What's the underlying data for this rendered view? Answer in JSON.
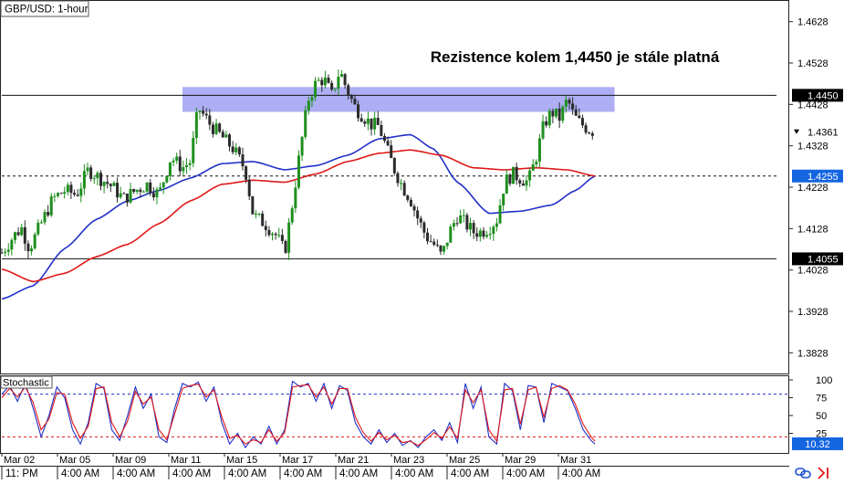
{
  "symbol_label": "GBP/USD: 1-hour",
  "annotation": "Rezistence kolem 1,4450 je stále platná",
  "indicator_label": "Stochastic",
  "colors": {
    "candle_up": "#1f8f1f",
    "candle_down": "#2b2b2b",
    "ma_fast": "#2030c8",
    "ma_slow": "#e01818",
    "zone_fill": "#8c8cf0",
    "tag_dark": "#000000",
    "tag_blue": "#1565e0",
    "stoch_k": "#2030c8",
    "stoch_d": "#e01818"
  },
  "footer_icons": [
    "link-icon",
    "arrow-right-icon"
  ],
  "chart_data": [
    {
      "type": "candlestick",
      "title": "GBP/USD: 1-hour",
      "x_range": [
        0,
        100
      ],
      "ylim": [
        1.3778,
        1.4678
      ],
      "y_ticks": [
        "1.4628",
        "1.4528",
        "1.4428",
        "1.4328",
        "1.4228",
        "1.4128",
        "1.4028",
        "1.3928",
        "1.3828"
      ],
      "x_tick_dates": [
        "Mar 02",
        "Mar 05",
        "Mar 09",
        "Mar 11",
        "Mar 15",
        "Mar 17",
        "Mar 21",
        "Mar 23",
        "Mar 25",
        "Mar 29",
        "Mar 31"
      ],
      "x_tick_times": [
        "11: PM",
        "4:00 AM",
        "4:00 AM",
        "4:00 AM",
        "4:00 AM",
        "4:00 AM",
        "4:00 AM",
        "4:00 AM",
        "4:00 AM",
        "4:00 AM",
        "4:00 AM"
      ],
      "price_tags": [
        {
          "label": "1.4450",
          "value": 1.445,
          "style": "dark"
        },
        {
          "label": "1.4361",
          "value": 1.4361,
          "style": "light"
        },
        {
          "label": "1.4255",
          "value": 1.4255,
          "style": "blue"
        },
        {
          "label": "1.4055",
          "value": 1.4055,
          "style": "dark"
        }
      ],
      "horizontal_lines": [
        {
          "value": 1.445,
          "style": "solid"
        },
        {
          "value": 1.4255,
          "style": "dashed"
        },
        {
          "value": 1.4055,
          "style": "solid"
        }
      ],
      "resistance_zone": {
        "from": 1.441,
        "to": 1.447,
        "x_start": 23,
        "x_end": 78
      },
      "price_path": [
        [
          0,
          1.407
        ],
        [
          1.5,
          1.411
        ],
        [
          2.5,
          1.413
        ],
        [
          3.5,
          1.408
        ],
        [
          5,
          1.414
        ],
        [
          6.5,
          1.42
        ],
        [
          8,
          1.422
        ],
        [
          9.5,
          1.421
        ],
        [
          11,
          1.427
        ],
        [
          12.5,
          1.425
        ],
        [
          14,
          1.423
        ],
        [
          15.5,
          1.42
        ],
        [
          17,
          1.422
        ],
        [
          18.5,
          1.4235
        ],
        [
          20,
          1.421
        ],
        [
          21.5,
          1.43
        ],
        [
          23,
          1.4275
        ],
        [
          24,
          1.429
        ],
        [
          25,
          1.442
        ],
        [
          26.5,
          1.438
        ],
        [
          28,
          1.435
        ],
        [
          29.5,
          1.432
        ],
        [
          31,
          1.427
        ],
        [
          32,
          1.416
        ],
        [
          33.5,
          1.414
        ],
        [
          35,
          1.411
        ],
        [
          36,
          1.407
        ],
        [
          37,
          1.419
        ],
        [
          38,
          1.432
        ],
        [
          39,
          1.444
        ],
        [
          40,
          1.448
        ],
        [
          41,
          1.449
        ],
        [
          42,
          1.445
        ],
        [
          43,
          1.451
        ],
        [
          44,
          1.446
        ],
        [
          45,
          1.442
        ],
        [
          46,
          1.44
        ],
        [
          47,
          1.438
        ],
        [
          48,
          1.4375
        ],
        [
          49,
          1.432
        ],
        [
          50,
          1.427
        ],
        [
          51,
          1.423
        ],
        [
          52,
          1.42
        ],
        [
          53,
          1.415
        ],
        [
          54,
          1.411
        ],
        [
          55,
          1.409
        ],
        [
          56,
          1.406
        ],
        [
          57,
          1.412
        ],
        [
          58,
          1.416
        ],
        [
          59,
          1.414
        ],
        [
          60,
          1.412
        ],
        [
          61,
          1.412
        ],
        [
          62,
          1.413
        ],
        [
          63,
          1.415
        ],
        [
          64,
          1.424
        ],
        [
          65,
          1.426
        ],
        [
          66,
          1.425
        ],
        [
          67,
          1.424
        ],
        [
          68,
          1.43
        ],
        [
          69,
          1.438
        ],
        [
          70,
          1.441
        ],
        [
          71,
          1.4395
        ],
        [
          72,
          1.444
        ],
        [
          72.8,
          1.44
        ],
        [
          73.5,
          1.4385
        ],
        [
          74.5,
          1.437
        ],
        [
          75.5,
          1.4361
        ]
      ],
      "series": [
        {
          "name": "",
          "color": "ma_fast",
          "points": [
            [
              0,
              1.3958
            ],
            [
              4,
              1.399
            ],
            [
              8,
              1.408
            ],
            [
              12,
              1.415
            ],
            [
              16,
              1.4195
            ],
            [
              20,
              1.422
            ],
            [
              24,
              1.425
            ],
            [
              28,
              1.4285
            ],
            [
              32,
              1.429
            ],
            [
              36,
              1.427
            ],
            [
              40,
              1.428
            ],
            [
              44,
              1.4305
            ],
            [
              48,
              1.4345
            ],
            [
              52,
              1.4355
            ],
            [
              55,
              1.432
            ],
            [
              58,
              1.424
            ],
            [
              62,
              1.4165
            ],
            [
              66,
              1.417
            ],
            [
              70,
              1.4185
            ],
            [
              73,
              1.422
            ],
            [
              75.5,
              1.4255
            ]
          ]
        },
        {
          "name": "",
          "color": "ma_slow",
          "points": [
            [
              0,
              1.403
            ],
            [
              4,
              1.4
            ],
            [
              8,
              1.402
            ],
            [
              12,
              1.406
            ],
            [
              16,
              1.409
            ],
            [
              20,
              1.414
            ],
            [
              24,
              1.4195
            ],
            [
              28,
              1.4235
            ],
            [
              32,
              1.4245
            ],
            [
              36,
              1.424
            ],
            [
              40,
              1.426
            ],
            [
              44,
              1.429
            ],
            [
              48,
              1.431
            ],
            [
              52,
              1.4318
            ],
            [
              56,
              1.4305
            ],
            [
              60,
              1.4275
            ],
            [
              64,
              1.427
            ],
            [
              68,
              1.4275
            ],
            [
              72,
              1.427
            ],
            [
              75.5,
              1.4255
            ]
          ]
        }
      ]
    },
    {
      "type": "line",
      "title": "Stochastic",
      "ylim": [
        0,
        100
      ],
      "y_ticks": [
        "100",
        "75",
        "50",
        "25"
      ],
      "reference_lines": [
        80,
        20
      ],
      "current_value": "10.32",
      "series": [
        {
          "name": "",
          "color": "stoch_k",
          "values": [
            [
              0,
              80
            ],
            [
              1,
              92
            ],
            [
              2,
              70
            ],
            [
              3,
              95
            ],
            [
              4,
              60
            ],
            [
              5,
              20
            ],
            [
              6,
              50
            ],
            [
              7,
              90
            ],
            [
              8,
              75
            ],
            [
              9,
              30
            ],
            [
              10,
              10
            ],
            [
              11,
              40
            ],
            [
              12,
              95
            ],
            [
              13,
              88
            ],
            [
              14,
              30
            ],
            [
              15,
              15
            ],
            [
              16,
              50
            ],
            [
              17,
              90
            ],
            [
              18,
              60
            ],
            [
              19,
              80
            ],
            [
              20,
              20
            ],
            [
              21,
              12
            ],
            [
              22,
              60
            ],
            [
              23,
              95
            ],
            [
              24,
              90
            ],
            [
              25,
              97
            ],
            [
              26,
              70
            ],
            [
              27,
              90
            ],
            [
              28,
              40
            ],
            [
              29,
              10
            ],
            [
              30,
              25
            ],
            [
              31,
              5
            ],
            [
              32,
              20
            ],
            [
              33,
              10
            ],
            [
              34,
              35
            ],
            [
              35,
              10
            ],
            [
              36,
              30
            ],
            [
              37,
              98
            ],
            [
              38,
              90
            ],
            [
              39,
              95
            ],
            [
              40,
              70
            ],
            [
              41,
              95
            ],
            [
              42,
              60
            ],
            [
              43,
              92
            ],
            [
              44,
              85
            ],
            [
              45,
              40
            ],
            [
              46,
              20
            ],
            [
              47,
              10
            ],
            [
              48,
              30
            ],
            [
              49,
              12
            ],
            [
              50,
              25
            ],
            [
              51,
              8
            ],
            [
              52,
              15
            ],
            [
              53,
              5
            ],
            [
              54,
              20
            ],
            [
              55,
              30
            ],
            [
              56,
              15
            ],
            [
              57,
              40
            ],
            [
              58,
              12
            ],
            [
              59,
              95
            ],
            [
              60,
              60
            ],
            [
              61,
              90
            ],
            [
              62,
              20
            ],
            [
              63,
              10
            ],
            [
              64,
              95
            ],
            [
              65,
              85
            ],
            [
              66,
              30
            ],
            [
              67,
              92
            ],
            [
              68,
              90
            ],
            [
              69,
              40
            ],
            [
              70,
              95
            ],
            [
              71,
              90
            ],
            [
              72,
              85
            ],
            [
              73,
              60
            ],
            [
              74,
              30
            ],
            [
              75,
              15
            ],
            [
              75.5,
              10
            ]
          ]
        },
        {
          "name": "",
          "color": "stoch_d",
          "values": [
            [
              0,
              75
            ],
            [
              1,
              88
            ],
            [
              2,
              76
            ],
            [
              3,
              90
            ],
            [
              4,
              68
            ],
            [
              5,
              30
            ],
            [
              6,
              45
            ],
            [
              7,
              82
            ],
            [
              8,
              80
            ],
            [
              9,
              40
            ],
            [
              10,
              18
            ],
            [
              11,
              35
            ],
            [
              12,
              88
            ],
            [
              13,
              90
            ],
            [
              14,
              40
            ],
            [
              15,
              20
            ],
            [
              16,
              42
            ],
            [
              17,
              84
            ],
            [
              18,
              66
            ],
            [
              19,
              76
            ],
            [
              20,
              30
            ],
            [
              21,
              16
            ],
            [
              22,
              52
            ],
            [
              23,
              88
            ],
            [
              24,
              92
            ],
            [
              25,
              94
            ],
            [
              26,
              76
            ],
            [
              27,
              86
            ],
            [
              28,
              48
            ],
            [
              29,
              18
            ],
            [
              30,
              22
            ],
            [
              31,
              10
            ],
            [
              32,
              16
            ],
            [
              33,
              12
            ],
            [
              34,
              30
            ],
            [
              35,
              14
            ],
            [
              36,
              26
            ],
            [
              37,
              90
            ],
            [
              38,
              92
            ],
            [
              39,
              93
            ],
            [
              40,
              76
            ],
            [
              41,
              90
            ],
            [
              42,
              66
            ],
            [
              43,
              88
            ],
            [
              44,
              88
            ],
            [
              45,
              48
            ],
            [
              46,
              26
            ],
            [
              47,
              14
            ],
            [
              48,
              26
            ],
            [
              49,
              16
            ],
            [
              50,
              22
            ],
            [
              51,
              12
            ],
            [
              52,
              14
            ],
            [
              53,
              8
            ],
            [
              54,
              16
            ],
            [
              55,
              26
            ],
            [
              56,
              18
            ],
            [
              57,
              34
            ],
            [
              58,
              18
            ],
            [
              59,
              86
            ],
            [
              60,
              68
            ],
            [
              61,
              86
            ],
            [
              62,
              30
            ],
            [
              63,
              14
            ],
            [
              64,
              86
            ],
            [
              65,
              88
            ],
            [
              66,
              38
            ],
            [
              67,
              86
            ],
            [
              68,
              90
            ],
            [
              69,
              48
            ],
            [
              70,
              88
            ],
            [
              71,
              92
            ],
            [
              72,
              86
            ],
            [
              73,
              66
            ],
            [
              74,
              38
            ],
            [
              75,
              20
            ],
            [
              75.5,
              14
            ]
          ]
        }
      ]
    }
  ]
}
